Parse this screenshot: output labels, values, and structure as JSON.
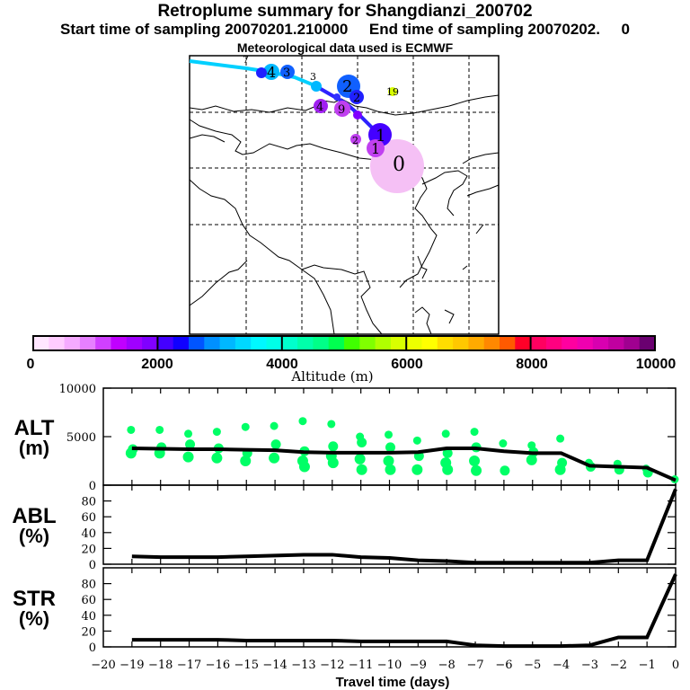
{
  "header": {
    "title": "Retroplume summary for Shangdianzi_200702",
    "subtitle": "Start time of sampling 20070201.210000     End time of sampling 20070202.     0",
    "met_line": "Meteorological data used is ECMWF"
  },
  "colorbar": {
    "label": "Altitude (m)",
    "tick_labels": [
      "0",
      "2000",
      "4000",
      "6000",
      "8000",
      "10000"
    ],
    "colors": [
      "#ffe6ff",
      "#ffccff",
      "#f5aaff",
      "#e680ff",
      "#d040ff",
      "#c000ff",
      "#a000ff",
      "#8000ff",
      "#4400ff",
      "#1000ff",
      "#0055ff",
      "#0090ff",
      "#00b8ff",
      "#00d8ff",
      "#00f8ff",
      "#00ffe8",
      "#00ffcc",
      "#00ffaa",
      "#00ff88",
      "#00ff50",
      "#40ff00",
      "#80ff00",
      "#b0ff00",
      "#d8ff00",
      "#ecff00",
      "#ffff00",
      "#ffdd00",
      "#ffc800",
      "#ffaa00",
      "#ff8800",
      "#ff5a00",
      "#ff0028",
      "#ff0060",
      "#ff0080",
      "#ff00a0",
      "#f000b0",
      "#d800b0",
      "#c000a0",
      "#a00090",
      "#6a0070"
    ]
  },
  "map": {
    "markers": [
      {
        "label": "0",
        "color": "#f5c0f5",
        "size": "large"
      },
      {
        "label": "1",
        "color": "#4400ff"
      },
      {
        "label": "1",
        "color": "#c040f0"
      },
      {
        "label": "2",
        "color": "#1060ff"
      },
      {
        "label": "2",
        "color": "#2020ff"
      },
      {
        "label": "2",
        "color": "#c040f0"
      },
      {
        "label": "3",
        "color": "#1060ff"
      },
      {
        "label": "3",
        "color": "#00b8ff"
      },
      {
        "label": "4",
        "color": "#00b8ff"
      },
      {
        "label": "4",
        "color": "#a020f0"
      },
      {
        "label": "7",
        "color": "#00b8ff"
      },
      {
        "label": "9",
        "color": "#c040f0"
      },
      {
        "label": "19",
        "color": "#d8ff00"
      }
    ]
  },
  "chart_data": [
    {
      "type": "scatter",
      "panel": "ALT",
      "ylabel_line1": "ALT",
      "ylabel_line2": "(m)",
      "xlabel": "Travel time (days)",
      "xlim": [
        -20,
        0
      ],
      "ylim": [
        0,
        10000
      ],
      "ytick_labels": [
        "0",
        "5000",
        "10000"
      ],
      "mean_line": {
        "x": [
          -19,
          -18,
          -17,
          -16,
          -15,
          -14,
          -13,
          -12,
          -11,
          -10,
          -9,
          -8,
          -7,
          -6,
          -5,
          -4,
          -3,
          -2,
          -1,
          0
        ],
        "y": [
          3800,
          3750,
          3700,
          3700,
          3650,
          3600,
          3400,
          3350,
          3350,
          3350,
          3400,
          3800,
          3800,
          3500,
          3300,
          3300,
          2000,
          1900,
          1800,
          500
        ]
      },
      "clusters": {
        "x": [
          -19,
          -18,
          -17,
          -16,
          -15,
          -14,
          -13,
          -12,
          -11,
          -10,
          -9,
          -8,
          -7,
          -6,
          -5,
          -4,
          -3,
          -2,
          -1,
          0
        ],
        "y": [
          [
            5700,
            3700,
            3300
          ],
          [
            5700,
            3900,
            3300
          ],
          [
            5300,
            4200,
            2900
          ],
          [
            5500,
            3800,
            2800
          ],
          [
            6000,
            3300,
            2500
          ],
          [
            6100,
            4200,
            2800
          ],
          [
            6600,
            3500,
            2500,
            1900
          ],
          [
            6300,
            4000,
            3000,
            2300
          ],
          [
            5000,
            4400,
            2700,
            1600
          ],
          [
            5200,
            3900,
            2500,
            1600
          ],
          [
            4600,
            3000,
            1600
          ],
          [
            5300,
            3300,
            2300,
            1600
          ],
          [
            5500,
            3900,
            2500,
            1500
          ],
          [
            4300,
            1500
          ],
          [
            4100,
            3400,
            2600
          ],
          [
            4800,
            2300,
            1600
          ],
          [
            2300,
            1900
          ],
          [
            2200,
            1600
          ],
          [
            1700,
            1300
          ],
          [
            600
          ]
        ]
      },
      "point_color": "#00ff66"
    },
    {
      "type": "line",
      "panel": "ABL",
      "ylabel_line1": "ABL",
      "ylabel_line2": "(%)",
      "xlim": [
        -20,
        0
      ],
      "ylim": [
        0,
        100
      ],
      "ytick_labels": [
        "0",
        "20",
        "40",
        "60",
        "80"
      ],
      "x": [
        -19,
        -18,
        -17,
        -16,
        -15,
        -14,
        -13,
        -12,
        -11,
        -10,
        -9,
        -8,
        -7,
        -6,
        -5,
        -4,
        -3,
        -2,
        -1,
        0
      ],
      "y": [
        10,
        9,
        9,
        9,
        10,
        11,
        12,
        12,
        9,
        8,
        5,
        4,
        2,
        2,
        2,
        2,
        2,
        5,
        5,
        95
      ]
    },
    {
      "type": "line",
      "panel": "STR",
      "ylabel_line1": "STR",
      "ylabel_line2": "(%)",
      "xlim": [
        -20,
        0
      ],
      "ylim": [
        0,
        100
      ],
      "ytick_labels": [
        "0",
        "20",
        "40",
        "60",
        "80"
      ],
      "xtick_labels": [
        "−20",
        "−19",
        "−18",
        "−17",
        "−16",
        "−15",
        "−14",
        "−13",
        "−12",
        "−11",
        "−10",
        "−9",
        "−8",
        "−7",
        "−6",
        "−5",
        "−4",
        "−3",
        "−2",
        "−1",
        "0"
      ],
      "x": [
        -19,
        -18,
        -17,
        -16,
        -15,
        -14,
        -13,
        -12,
        -11,
        -10,
        -9,
        -8,
        -7,
        -6,
        -5,
        -4,
        -3,
        -2,
        -1,
        0
      ],
      "y": [
        9,
        9,
        9,
        9,
        8,
        8,
        8,
        8,
        7,
        7,
        7,
        7,
        2,
        1,
        1,
        1,
        2,
        12,
        12,
        92
      ]
    }
  ]
}
